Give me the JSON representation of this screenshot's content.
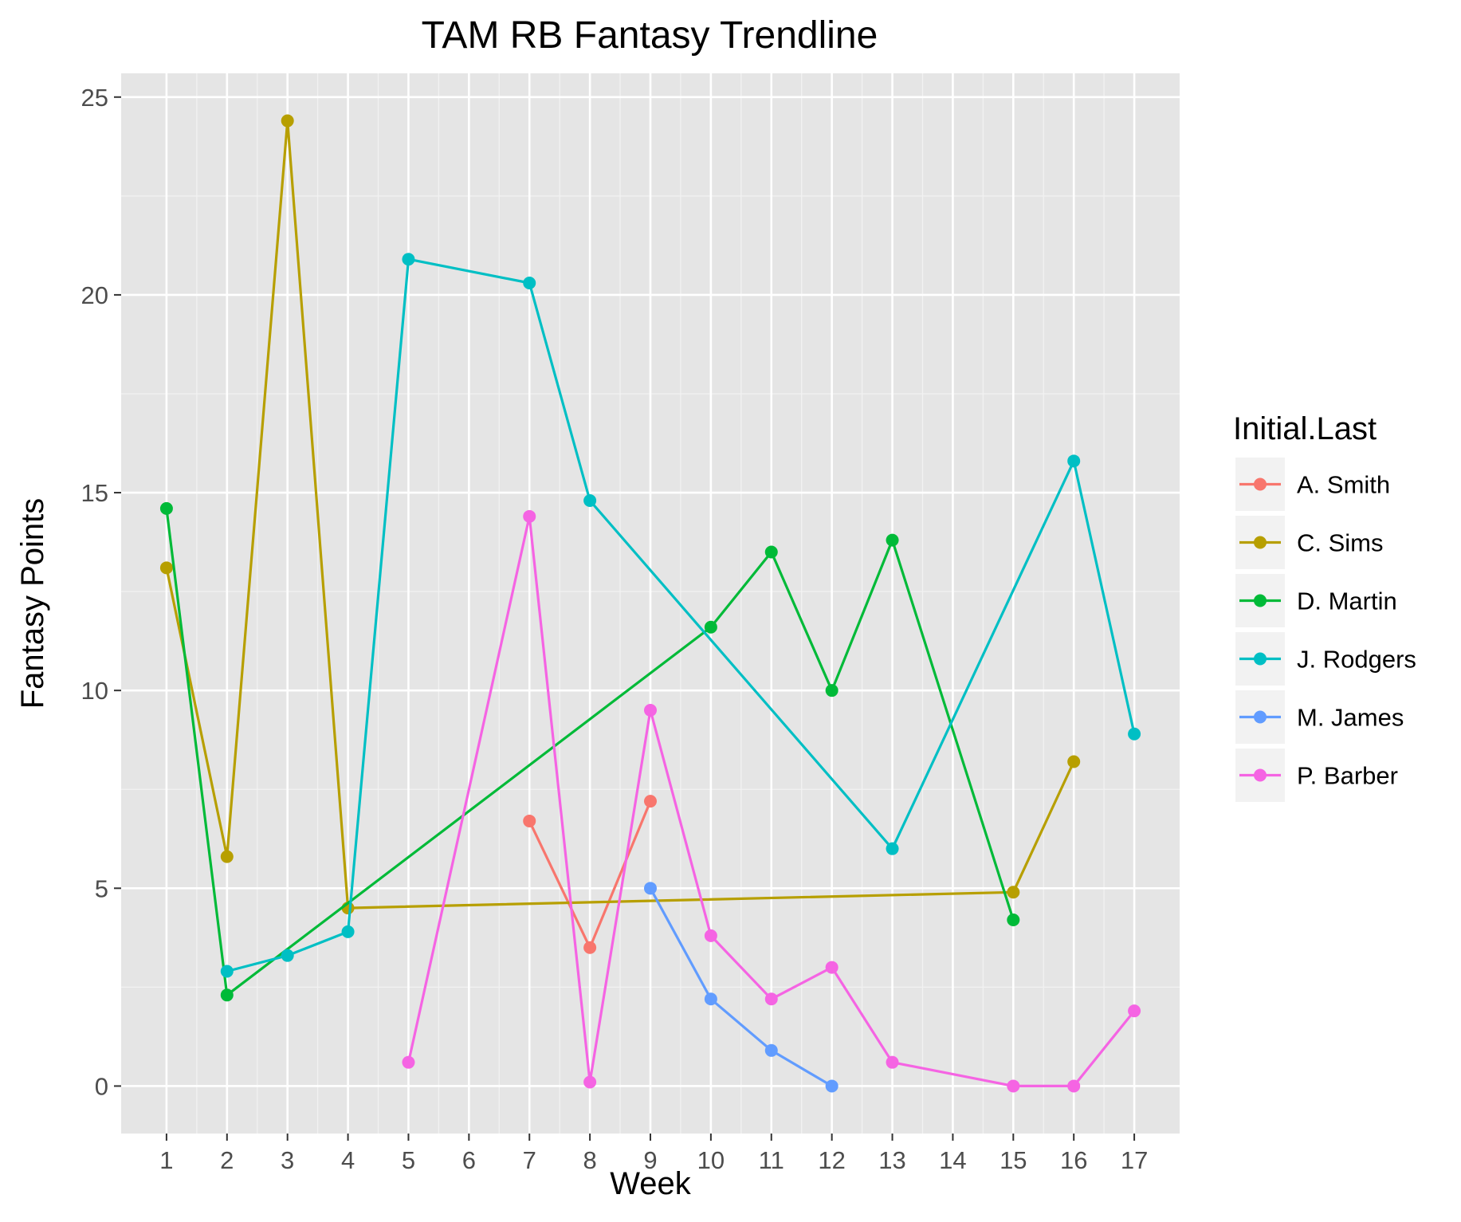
{
  "chart_data": {
    "type": "line",
    "title": "TAM RB Fantasy Trendline",
    "xlabel": "Week",
    "ylabel": "Fantasy Points",
    "x_ticks": [
      "1",
      "2",
      "3",
      "4",
      "5",
      "6",
      "7",
      "8",
      "9",
      "10",
      "11",
      "12",
      "13",
      "14",
      "15",
      "16",
      "17"
    ],
    "x_tick_positions": [
      1,
      2,
      3,
      4,
      5,
      6,
      7,
      8,
      9,
      10,
      11,
      12,
      13,
      14,
      15,
      16,
      17
    ],
    "y_ticks": [
      0,
      5,
      10,
      15,
      20,
      25
    ],
    "xlim": [
      0.25,
      17.75
    ],
    "ylim": [
      -1.2,
      25.6
    ],
    "grid": true,
    "legend": {
      "title": "Initial.Last",
      "position": "right"
    },
    "series": [
      {
        "name": "A. Smith",
        "color": "#F8766D",
        "x": [
          7,
          8,
          9
        ],
        "y": [
          6.7,
          3.5,
          7.2
        ]
      },
      {
        "name": "C. Sims",
        "color": "#B79F00",
        "x": [
          1,
          2,
          3,
          4,
          15,
          16
        ],
        "y": [
          13.1,
          5.8,
          24.4,
          4.5,
          4.9,
          8.2
        ]
      },
      {
        "name": "D. Martin",
        "color": "#00BA38",
        "x": [
          1,
          2,
          10,
          11,
          12,
          13,
          15
        ],
        "y": [
          14.6,
          2.3,
          11.6,
          13.5,
          10.0,
          13.8,
          4.2
        ]
      },
      {
        "name": "J. Rodgers",
        "color": "#00BFC4",
        "x": [
          2,
          3,
          4,
          5,
          7,
          8,
          13,
          16,
          17
        ],
        "y": [
          2.9,
          3.3,
          3.9,
          20.9,
          20.3,
          14.8,
          6.0,
          15.8,
          8.9
        ]
      },
      {
        "name": "M. James",
        "color": "#619CFF",
        "x": [
          9,
          10,
          11,
          12
        ],
        "y": [
          5.0,
          2.2,
          0.9,
          0.0
        ]
      },
      {
        "name": "P. Barber",
        "color": "#F564E3",
        "x": [
          5,
          7,
          8,
          9,
          10,
          11,
          12,
          13,
          15,
          16,
          17
        ],
        "y": [
          0.6,
          14.4,
          0.1,
          9.5,
          3.8,
          2.2,
          3.0,
          0.6,
          0.0,
          0.0,
          1.9
        ]
      }
    ]
  }
}
